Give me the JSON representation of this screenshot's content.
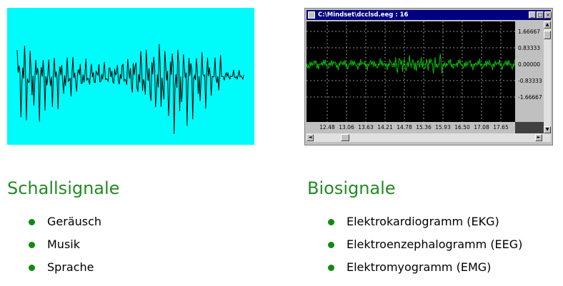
{
  "eeg_window": {
    "title": "C:\\Mindset\\dcclsd.eeg : 16",
    "y_ticks": [
      "1.66667",
      "0.83333",
      "0.00000",
      "-0.83333",
      "-1.66667"
    ],
    "x_ticks": [
      "12.48",
      "13.06",
      "13.63",
      "14.21",
      "14.78",
      "15.36",
      "15.93",
      "16.50",
      "17.08",
      "17.65"
    ],
    "trace_color": "#00c000",
    "minimize_glyph": "_",
    "maximize_glyph": "□",
    "close_glyph": "×"
  },
  "sound_panel": {
    "background": "#00fbfb",
    "trace_color": "#000000"
  },
  "left": {
    "heading": "Schallsignale",
    "items": [
      "Geräusch",
      "Musik",
      "Sprache"
    ]
  },
  "right": {
    "heading": "Biosignale",
    "items": [
      "Elektrokardiogramm (EKG)",
      "Elektroenzephalogramm (EEG)",
      "Elektromyogramm (EMG)"
    ]
  },
  "accent_color": "#228b22"
}
